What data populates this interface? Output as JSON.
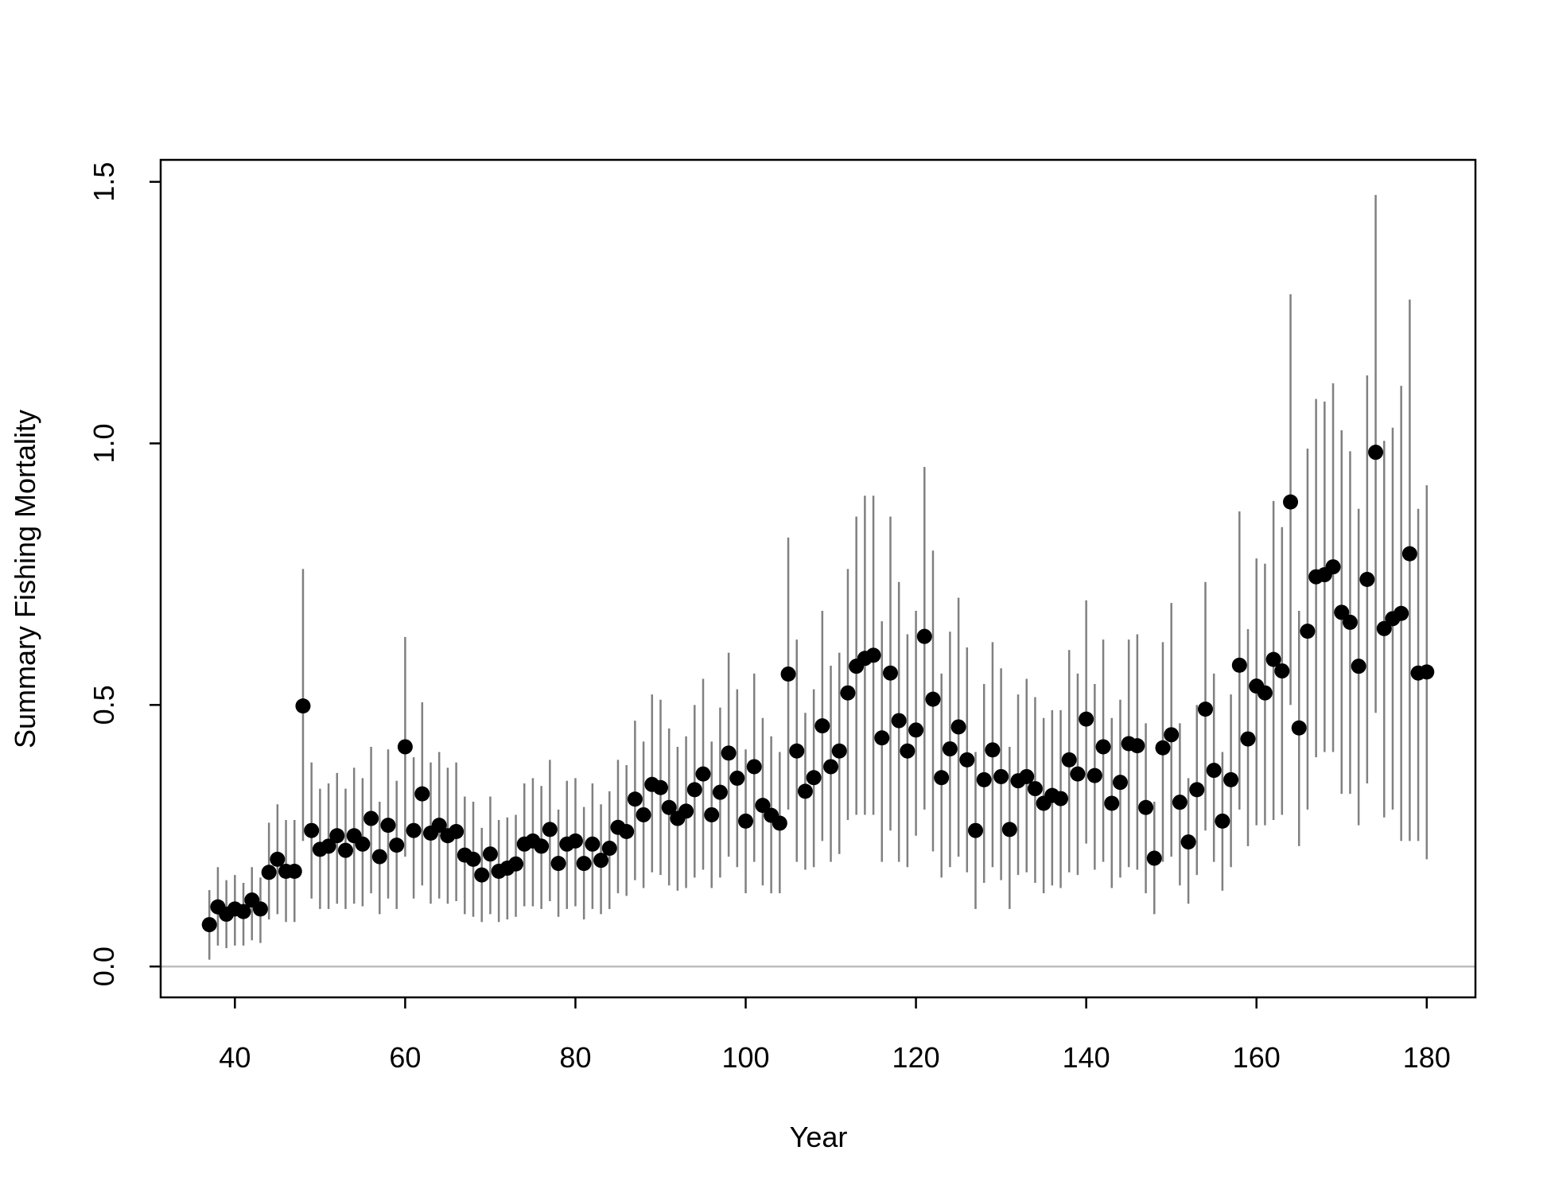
{
  "chart_data": {
    "type": "errorbar-scatter",
    "x_label": "Year",
    "y_label": "Summary Fishing Mortality",
    "xlim": [
      31.28,
      185.72
    ],
    "ylim": [
      -0.059,
      1.542
    ],
    "xticks": [
      40,
      60,
      80,
      100,
      120,
      140,
      160,
      180
    ],
    "yticks": [
      {
        "value": 0,
        "label": "0.0"
      },
      0.5,
      {
        "value": 1,
        "label": "1.0"
      },
      1.5
    ],
    "reference_line": 0,
    "reference_color": "#bebebe",
    "point_color": "#000000",
    "bar_color": "#808080",
    "x": [
      37,
      38,
      39,
      40,
      41,
      42,
      43,
      44,
      45,
      46,
      47,
      48,
      49,
      50,
      51,
      52,
      53,
      54,
      55,
      56,
      57,
      58,
      59,
      60,
      61,
      62,
      63,
      64,
      65,
      66,
      67,
      68,
      69,
      70,
      71,
      72,
      73,
      74,
      75,
      76,
      77,
      78,
      79,
      80,
      81,
      82,
      83,
      84,
      85,
      86,
      87,
      88,
      89,
      90,
      91,
      92,
      93,
      94,
      95,
      96,
      97,
      98,
      99,
      100,
      101,
      102,
      103,
      104,
      105,
      106,
      107,
      108,
      109,
      110,
      111,
      112,
      113,
      114,
      115,
      116,
      117,
      118,
      119,
      120,
      121,
      122,
      123,
      124,
      125,
      126,
      127,
      128,
      129,
      130,
      131,
      132,
      133,
      134,
      135,
      136,
      137,
      138,
      139,
      140,
      141,
      142,
      143,
      144,
      145,
      146,
      147,
      148,
      149,
      150,
      151,
      152,
      153,
      154,
      155,
      156,
      157,
      158,
      159,
      160,
      161,
      162,
      163,
      164,
      165,
      166,
      167,
      168,
      169,
      170,
      171,
      172,
      173,
      174,
      175,
      176,
      177,
      178,
      179,
      180
    ],
    "values": [
      0.08,
      0.114,
      0.1,
      0.11,
      0.105,
      0.127,
      0.11,
      0.18,
      0.205,
      0.182,
      0.182,
      0.498,
      0.26,
      0.224,
      0.23,
      0.25,
      0.222,
      0.25,
      0.234,
      0.283,
      0.21,
      0.27,
      0.232,
      0.42,
      0.26,
      0.33,
      0.255,
      0.27,
      0.25,
      0.258,
      0.213,
      0.205,
      0.175,
      0.215,
      0.182,
      0.188,
      0.196,
      0.234,
      0.24,
      0.23,
      0.262,
      0.197,
      0.234,
      0.24,
      0.197,
      0.234,
      0.203,
      0.226,
      0.266,
      0.258,
      0.32,
      0.29,
      0.348,
      0.342,
      0.304,
      0.283,
      0.297,
      0.338,
      0.368,
      0.29,
      0.333,
      0.408,
      0.36,
      0.278,
      0.382,
      0.308,
      0.289,
      0.274,
      0.559,
      0.412,
      0.335,
      0.361,
      0.46,
      0.382,
      0.412,
      0.523,
      0.574,
      0.589,
      0.595,
      0.437,
      0.561,
      0.47,
      0.412,
      0.452,
      0.631,
      0.511,
      0.361,
      0.416,
      0.458,
      0.395,
      0.26,
      0.357,
      0.414,
      0.363,
      0.262,
      0.355,
      0.363,
      0.34,
      0.312,
      0.327,
      0.321,
      0.395,
      0.368,
      0.473,
      0.365,
      0.42,
      0.312,
      0.352,
      0.426,
      0.422,
      0.304,
      0.207,
      0.418,
      0.443,
      0.314,
      0.238,
      0.338,
      0.492,
      0.375,
      0.278,
      0.357,
      0.576,
      0.435,
      0.536,
      0.523,
      0.587,
      0.565,
      0.888,
      0.456,
      0.641,
      0.745,
      0.749,
      0.764,
      0.677,
      0.658,
      0.574,
      0.74,
      0.983,
      0.646,
      0.665,
      0.675,
      0.789,
      0.561,
      0.563
    ],
    "lower": [
      0.013,
      0.04,
      0.035,
      0.04,
      0.04,
      0.05,
      0.045,
      0.09,
      0.1,
      0.085,
      0.085,
      0.24,
      0.13,
      0.11,
      0.11,
      0.12,
      0.11,
      0.12,
      0.115,
      0.14,
      0.1,
      0.13,
      0.11,
      0.21,
      0.13,
      0.155,
      0.12,
      0.13,
      0.12,
      0.125,
      0.1,
      0.095,
      0.085,
      0.1,
      0.085,
      0.09,
      0.095,
      0.115,
      0.115,
      0.11,
      0.125,
      0.095,
      0.11,
      0.115,
      0.09,
      0.11,
      0.1,
      0.11,
      0.14,
      0.135,
      0.165,
      0.15,
      0.18,
      0.175,
      0.155,
      0.145,
      0.15,
      0.17,
      0.185,
      0.15,
      0.17,
      0.21,
      0.19,
      0.14,
      0.2,
      0.155,
      0.14,
      0.14,
      0.3,
      0.2,
      0.185,
      0.19,
      0.24,
      0.2,
      0.215,
      0.28,
      0.29,
      0.29,
      0.29,
      0.2,
      0.26,
      0.2,
      0.19,
      0.25,
      0.3,
      0.22,
      0.17,
      0.19,
      0.21,
      0.18,
      0.11,
      0.16,
      0.19,
      0.165,
      0.11,
      0.175,
      0.18,
      0.16,
      0.14,
      0.155,
      0.15,
      0.18,
      0.175,
      0.235,
      0.185,
      0.2,
      0.15,
      0.17,
      0.19,
      0.185,
      0.14,
      0.1,
      0.2,
      0.21,
      0.155,
      0.12,
      0.175,
      0.26,
      0.2,
      0.145,
      0.19,
      0.3,
      0.23,
      0.27,
      0.27,
      0.28,
      0.29,
      0.5,
      0.23,
      0.3,
      0.4,
      0.41,
      0.41,
      0.33,
      0.33,
      0.27,
      0.35,
      0.485,
      0.285,
      0.3,
      0.24,
      0.24,
      0.24,
      0.205
    ],
    "upper": [
      0.146,
      0.19,
      0.165,
      0.175,
      0.16,
      0.19,
      0.17,
      0.275,
      0.31,
      0.28,
      0.28,
      0.76,
      0.39,
      0.34,
      0.35,
      0.37,
      0.34,
      0.38,
      0.36,
      0.42,
      0.315,
      0.415,
      0.355,
      0.63,
      0.4,
      0.505,
      0.39,
      0.41,
      0.38,
      0.39,
      0.325,
      0.315,
      0.265,
      0.325,
      0.28,
      0.285,
      0.29,
      0.35,
      0.36,
      0.345,
      0.395,
      0.3,
      0.355,
      0.36,
      0.305,
      0.35,
      0.31,
      0.335,
      0.395,
      0.385,
      0.47,
      0.43,
      0.52,
      0.51,
      0.455,
      0.42,
      0.44,
      0.5,
      0.55,
      0.43,
      0.495,
      0.6,
      0.53,
      0.415,
      0.56,
      0.475,
      0.44,
      0.41,
      0.82,
      0.625,
      0.485,
      0.53,
      0.68,
      0.575,
      0.6,
      0.76,
      0.86,
      0.9,
      0.9,
      0.66,
      0.86,
      0.735,
      0.635,
      0.68,
      0.955,
      0.795,
      0.56,
      0.64,
      0.705,
      0.61,
      0.41,
      0.54,
      0.62,
      0.57,
      0.42,
      0.52,
      0.55,
      0.515,
      0.475,
      0.49,
      0.49,
      0.605,
      0.56,
      0.7,
      0.54,
      0.625,
      0.475,
      0.51,
      0.625,
      0.635,
      0.465,
      0.315,
      0.62,
      0.695,
      0.465,
      0.36,
      0.5,
      0.735,
      0.56,
      0.41,
      0.52,
      0.87,
      0.645,
      0.78,
      0.77,
      0.89,
      0.84,
      1.285,
      0.68,
      0.99,
      1.085,
      1.08,
      1.115,
      1.025,
      0.985,
      0.875,
      1.13,
      1.475,
      1.005,
      1.03,
      1.11,
      1.275,
      0.875,
      0.92
    ]
  }
}
